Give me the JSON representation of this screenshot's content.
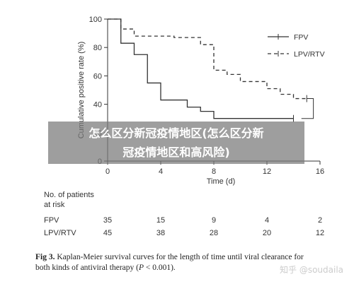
{
  "overlay": {
    "line1": "怎么区分新冠疫情地区(怎么区分新",
    "line2": "冠疫情地区和高风险)"
  },
  "chart_data": {
    "type": "line",
    "ylabel": "Cumulative positive rate (%)",
    "xlabel": "Time (d)",
    "xlim": [
      0,
      16
    ],
    "ylim": [
      0,
      100
    ],
    "xticks": [
      0,
      4,
      8,
      12,
      16
    ],
    "yticks": [
      0,
      20,
      40,
      60,
      80,
      100
    ],
    "legend_position": "top-right",
    "series": [
      {
        "name": "FPV",
        "style": "solid",
        "color": "#333333",
        "x": [
          0,
          1,
          1,
          2,
          2,
          3,
          3,
          4,
          4,
          6,
          6,
          7,
          7,
          8,
          8,
          12,
          12,
          14
        ],
        "y": [
          100,
          100,
          83,
          83,
          75,
          75,
          55,
          55,
          43,
          43,
          38,
          38,
          35,
          35,
          30,
          30,
          30,
          30
        ]
      },
      {
        "name": "LPV/RTV",
        "style": "dashed",
        "color": "#333333",
        "x": [
          0,
          1,
          1,
          2,
          2,
          5,
          5,
          7,
          7,
          8,
          8,
          9,
          9,
          10,
          10,
          12,
          12,
          13,
          13,
          14,
          14,
          15
        ],
        "y": [
          100,
          100,
          93,
          93,
          88,
          88,
          87,
          87,
          82,
          82,
          64,
          64,
          61,
          61,
          56,
          56,
          51,
          51,
          47,
          47,
          44,
          44
        ]
      }
    ]
  },
  "risk_table": {
    "title_line1": "No. of patients",
    "title_line2": "at risk",
    "times": [
      0,
      4,
      8,
      12,
      16
    ],
    "rows": [
      {
        "label": "FPV",
        "values": [
          "35",
          "15",
          "9",
          "4",
          "2"
        ]
      },
      {
        "label": "LPV/RTV",
        "values": [
          "45",
          "38",
          "28",
          "20",
          "12"
        ]
      }
    ]
  },
  "caption": {
    "bold": "Fig 3.",
    "text_line1": " Kaplan-Meier survival curves for the length of time until viral clearance for",
    "text_line2": "both kinds of antiviral therapy (",
    "p_italic": "P",
    "text_line2_end": " < 0.001)."
  },
  "watermark": "知乎 @soudaila"
}
